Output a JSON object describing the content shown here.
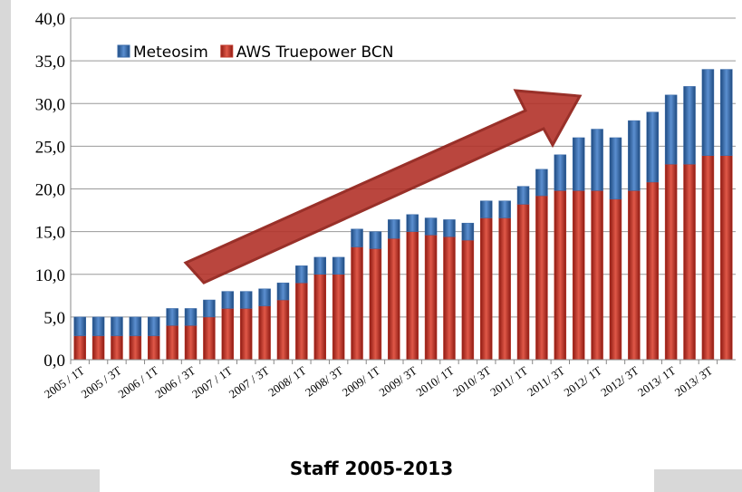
{
  "chart_data": {
    "type": "stacked_bar",
    "title": "Staff 2005-2013",
    "categories": [
      "2005 / 1T",
      null,
      "2005 / 3T",
      null,
      "2006 / 1T",
      null,
      "2006 / 3T",
      null,
      "2007 / 1T",
      null,
      "2007 / 3T",
      null,
      "2008/ 1T",
      null,
      "2008/ 3T",
      null,
      "2009/ 1T",
      null,
      "2009/ 3T",
      null,
      "2010/ 1T",
      null,
      "2010/ 3T",
      null,
      "2011/ 1T",
      null,
      "2011/ 3T",
      null,
      "2012/ 1T",
      null,
      "2012/ 3T",
      null,
      "2013/ 1T",
      null,
      "2013/ 3T",
      null
    ],
    "series": [
      {
        "name": "AWS Truepower BCN",
        "color": "#c0392b",
        "values": [
          2.8,
          2.8,
          2.8,
          2.8,
          2.8,
          4,
          4,
          5,
          6,
          6,
          6.3,
          7,
          9,
          10,
          10,
          13.2,
          13,
          14.2,
          15,
          14.6,
          14.4,
          14,
          16.6,
          16.6,
          18.2,
          19.2,
          19.8,
          19.8,
          19.8,
          18.8,
          19.8,
          20.8,
          22.9,
          22.9,
          23.9,
          23.9
        ]
      },
      {
        "name": "Meteosim",
        "color": "#3a6aa8",
        "values": [
          2.2,
          2.2,
          2.2,
          2.2,
          2.2,
          2,
          2,
          2,
          2,
          2,
          2,
          2,
          2,
          2,
          2,
          2.1,
          2,
          2.2,
          2,
          2,
          2,
          2,
          2,
          2,
          2.1,
          3.1,
          4.2,
          6.2,
          7.2,
          7.2,
          8.2,
          8.2,
          8.1,
          9.1,
          10.1,
          10.1
        ]
      }
    ],
    "ylim": [
      0,
      40
    ],
    "yticks": [
      {
        "value": 0,
        "label": "0,0"
      },
      {
        "value": 5,
        "label": "5,0"
      },
      {
        "value": 10,
        "label": "10,0"
      },
      {
        "value": 15,
        "label": "15,0"
      },
      {
        "value": 20,
        "label": "20,0"
      },
      {
        "value": 25,
        "label": "25,0"
      },
      {
        "value": 30,
        "label": "30,0"
      },
      {
        "value": 35,
        "label": "35,0"
      },
      {
        "value": 40,
        "label": "40,0"
      }
    ],
    "grid": true,
    "legend": "top-left"
  }
}
